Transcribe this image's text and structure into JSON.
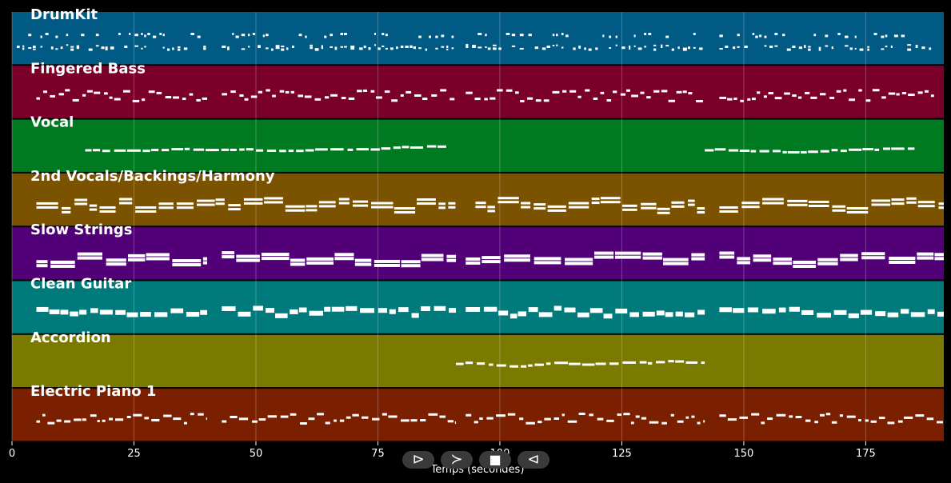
{
  "xlabel": "Temps (secondes)",
  "x_ticks": [
    0,
    25,
    50,
    75,
    100,
    125,
    150,
    175
  ],
  "x_range": [
    0,
    191
  ],
  "tracks": [
    {
      "name": "DrumKit",
      "color": "#005a84",
      "style": "drum",
      "segments": [
        [
          1,
          40
        ],
        [
          43,
          91
        ],
        [
          93,
          142
        ],
        [
          145,
          189
        ]
      ]
    },
    {
      "name": "Fingered Bass",
      "color": "#7a0029",
      "style": "bass",
      "segments": [
        [
          5,
          40
        ],
        [
          43,
          91
        ],
        [
          93,
          142
        ],
        [
          145,
          189
        ]
      ]
    },
    {
      "name": "Vocal",
      "color": "#007a21",
      "style": "melody",
      "segments": [
        [
          15,
          89
        ],
        [
          142,
          185
        ]
      ]
    },
    {
      "name": "2nd Vocals/Backings/Harmony",
      "color": "#7a5200",
      "style": "chords",
      "segments": [
        [
          5,
          91
        ],
        [
          95,
          142
        ],
        [
          145,
          191
        ]
      ]
    },
    {
      "name": "Slow Strings",
      "color": "#520078",
      "style": "pads",
      "segments": [
        [
          5,
          40
        ],
        [
          43,
          91
        ],
        [
          93,
          142
        ],
        [
          145,
          191
        ]
      ]
    },
    {
      "name": "Clean Guitar",
      "color": "#007a7a",
      "style": "blocks",
      "segments": [
        [
          5,
          40
        ],
        [
          43,
          91
        ],
        [
          93,
          142
        ],
        [
          145,
          191
        ]
      ]
    },
    {
      "name": "Accordion",
      "color": "#7a7a00",
      "style": "melody",
      "segments": [
        [
          91,
          142
        ]
      ]
    },
    {
      "name": "Electric Piano 1",
      "color": "#7a1f00",
      "style": "dense",
      "segments": [
        [
          5,
          40
        ],
        [
          43,
          91
        ],
        [
          93,
          142
        ],
        [
          145,
          191
        ]
      ]
    }
  ],
  "controls": [
    {
      "name": "play-icon",
      "glyph": "⊳"
    },
    {
      "name": "forward-icon",
      "glyph": "≻"
    },
    {
      "name": "stop-icon",
      "glyph": "■"
    },
    {
      "name": "back-icon",
      "glyph": "⊲"
    }
  ]
}
